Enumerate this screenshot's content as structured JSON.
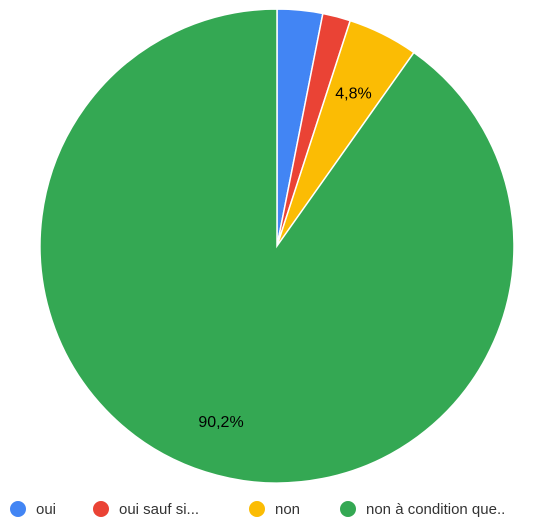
{
  "chart_data": {
    "type": "pie",
    "categories": [
      "oui",
      "oui sauf si...",
      "non",
      "non à condition que.."
    ],
    "values": [
      3.1,
      1.9,
      4.8,
      90.2
    ],
    "colors": [
      "#4285F4",
      "#EA4335",
      "#FBBC04",
      "#34A853"
    ],
    "data_labels": [
      "",
      "",
      "4,8%",
      "90,2%"
    ],
    "start_angle": "12 o'clock",
    "direction": "clockwise",
    "legend_position": "bottom"
  },
  "legend": {
    "items": [
      {
        "label": "oui",
        "color": "#4285F4"
      },
      {
        "label": "oui sauf si...",
        "color": "#EA4335"
      },
      {
        "label": "non",
        "color": "#FBBC04"
      },
      {
        "label": "non à condition que..",
        "color": "#34A853"
      }
    ]
  }
}
